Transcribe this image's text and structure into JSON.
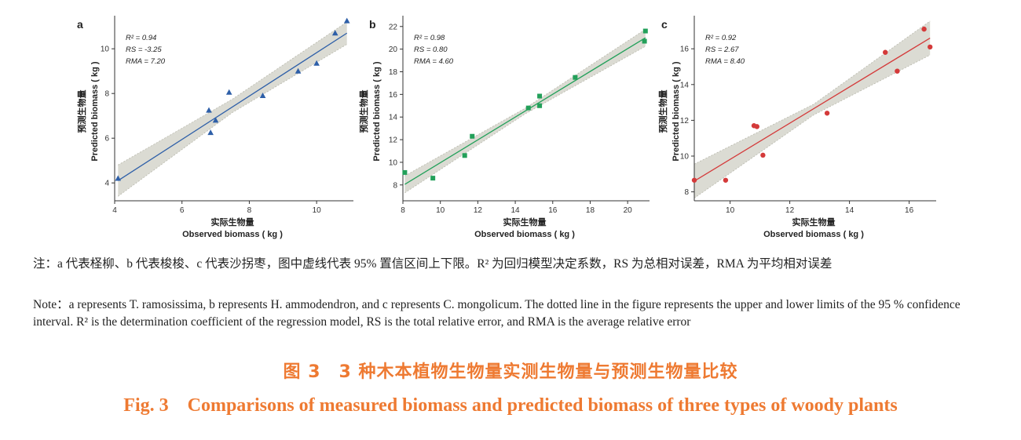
{
  "chart_data": [
    {
      "type": "scatter",
      "panel_label": "a",
      "marker": "triangle",
      "color": "#2e5fa8",
      "xlabel_cn": "实际生物量",
      "xlabel": "Observed biomass ( kg )",
      "ylabel_cn": "预测生物量",
      "ylabel": "Predicted biomass ( kg )",
      "xlim": [
        4,
        11
      ],
      "ylim": [
        3.2,
        11.2
      ],
      "xticks": [
        4,
        6,
        8,
        10
      ],
      "yticks": [
        4,
        6,
        8,
        10
      ],
      "stats": [
        "R² = 0.94",
        "RS = -3.25",
        "RMA = 7.20"
      ],
      "points": [
        [
          4.1,
          4.2
        ],
        [
          6.8,
          7.25
        ],
        [
          6.85,
          6.25
        ],
        [
          7.0,
          6.8
        ],
        [
          7.4,
          8.05
        ],
        [
          8.4,
          7.9
        ],
        [
          9.45,
          9.0
        ],
        [
          10.0,
          9.35
        ],
        [
          10.55,
          10.7
        ],
        [
          10.9,
          11.25
        ]
      ],
      "fit": [
        [
          4.1,
          4.1
        ],
        [
          10.9,
          10.7
        ]
      ],
      "ci_upper": [
        [
          4.1,
          4.8
        ],
        [
          7.5,
          7.75
        ],
        [
          10.9,
          11.2
        ]
      ],
      "ci_lower": [
        [
          4.1,
          3.4
        ],
        [
          7.5,
          7.15
        ],
        [
          10.9,
          10.2
        ]
      ]
    },
    {
      "type": "scatter",
      "panel_label": "b",
      "marker": "square",
      "color": "#23a05a",
      "xlabel_cn": "实际生物量",
      "xlabel": "Observed biomass ( kg )",
      "ylabel_cn": "预测生物量",
      "ylabel": "Predicted biomass ( kg )",
      "xlim": [
        8,
        21
      ],
      "ylim": [
        6.6,
        22.4
      ],
      "xticks": [
        8,
        10,
        12,
        14,
        16,
        18,
        20
      ],
      "yticks": [
        8,
        10,
        12,
        14,
        16,
        18,
        20,
        22
      ],
      "stats": [
        "R² = 0.98",
        "RS = 0.80",
        "RMA = 4.60"
      ],
      "points": [
        [
          8.1,
          9.1
        ],
        [
          9.6,
          8.6
        ],
        [
          11.3,
          10.6
        ],
        [
          11.7,
          12.3
        ],
        [
          14.7,
          14.8
        ],
        [
          15.3,
          15.0
        ],
        [
          15.3,
          15.85
        ],
        [
          17.2,
          17.5
        ],
        [
          20.9,
          20.7
        ],
        [
          20.95,
          21.6
        ]
      ],
      "fit": [
        [
          8.1,
          8.05
        ],
        [
          20.95,
          21.0
        ]
      ],
      "ci_upper": [
        [
          8.1,
          8.8
        ],
        [
          14.5,
          14.75
        ],
        [
          20.95,
          21.75
        ]
      ],
      "ci_lower": [
        [
          8.1,
          7.3
        ],
        [
          14.5,
          14.25
        ],
        [
          20.95,
          20.25
        ]
      ]
    },
    {
      "type": "scatter",
      "panel_label": "c",
      "marker": "circle",
      "color": "#d43a3a",
      "xlabel_cn": "实际生物量",
      "xlabel": "Observed biomass ( kg )",
      "ylabel_cn": "预测生物量",
      "ylabel": "Predicted biomass ( kg )",
      "xlim": [
        8.8,
        16.8
      ],
      "ylim": [
        7.5,
        17.5
      ],
      "xticks": [
        10,
        12,
        14,
        16
      ],
      "yticks": [
        8,
        10,
        12,
        14,
        16
      ],
      "stats": [
        "R² = 0.92",
        "RS = 2.67",
        "RMA = 8.40"
      ],
      "points": [
        [
          8.8,
          8.65
        ],
        [
          9.85,
          8.65
        ],
        [
          10.8,
          11.7
        ],
        [
          10.9,
          11.65
        ],
        [
          11.1,
          10.05
        ],
        [
          13.25,
          12.4
        ],
        [
          15.2,
          15.8
        ],
        [
          15.6,
          14.75
        ],
        [
          16.5,
          17.1
        ],
        [
          16.7,
          16.1
        ]
      ],
      "fit": [
        [
          8.8,
          8.6
        ],
        [
          16.7,
          16.6
        ]
      ],
      "ci_upper": [
        [
          8.8,
          9.55
        ],
        [
          12.8,
          12.9
        ],
        [
          16.7,
          17.55
        ]
      ],
      "ci_lower": [
        [
          8.8,
          7.65
        ],
        [
          12.8,
          12.3
        ],
        [
          16.7,
          15.65
        ]
      ]
    }
  ],
  "notes": {
    "cn": "注：a 代表柽柳、b 代表梭梭、c 代表沙拐枣，图中虚线代表 95% 置信区间上下限。R² 为回归模型决定系数，RS 为总相对误差，RMA 为平均相对误差",
    "en": "Note：a represents T. ramosissima, b represents H. ammodendron, and c represents C. mongolicum. The dotted line in the figure represents the upper and lower limits of the 95 % confidence interval. R² is the determination coefficient of the regression model, RS is the total relative error, and RMA is the average relative error"
  },
  "caption": {
    "cn": "图 3　3 种木本植物生物量实测生物量与预测生物量比较",
    "en": "Fig. 3　Comparisons of measured biomass and predicted biomass of three types of woody plants"
  },
  "colors": {
    "caption": "#ee7a32",
    "ci_band": "#cfcfc4"
  }
}
